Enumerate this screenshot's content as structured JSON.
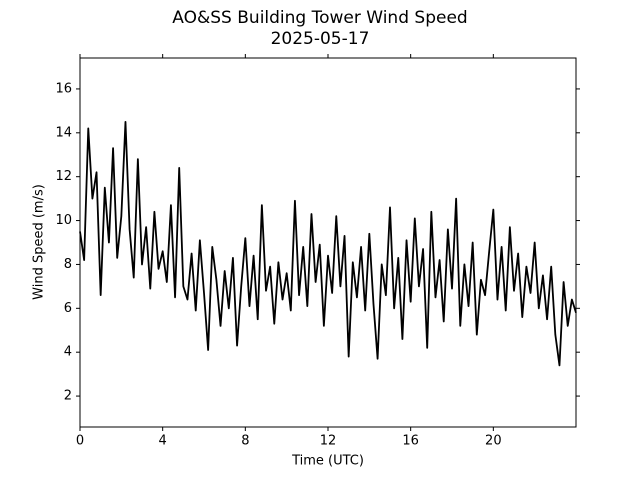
{
  "chart_data": {
    "type": "line",
    "title": "AO&SS Building Tower Wind Speed",
    "subtitle": "2025-05-17",
    "x_label": "Time (UTC)",
    "y_label": "Wind Speed (m/s)",
    "xlim": [
      0,
      24
    ],
    "ylim": [
      0.59,
      17.41
    ],
    "xticks": [
      0,
      4,
      8,
      12,
      16,
      20
    ],
    "yticks": [
      2,
      4,
      6,
      8,
      10,
      12,
      14,
      16
    ],
    "color": "#000000",
    "x": [
      0.0,
      0.2,
      0.4,
      0.6,
      0.8,
      1.0,
      1.2,
      1.4,
      1.6,
      1.8,
      2.0,
      2.2,
      2.4,
      2.6,
      2.8,
      3.0,
      3.2,
      3.4,
      3.6,
      3.8,
      4.0,
      4.2,
      4.4,
      4.6,
      4.8,
      5.0,
      5.2,
      5.4,
      5.6,
      5.8,
      6.0,
      6.2,
      6.4,
      6.6,
      6.8,
      7.0,
      7.2,
      7.4,
      7.6,
      7.8,
      8.0,
      8.2,
      8.4,
      8.6,
      8.8,
      9.0,
      9.2,
      9.4,
      9.6,
      9.8,
      10.0,
      10.2,
      10.4,
      10.6,
      10.8,
      11.0,
      11.2,
      11.4,
      11.6,
      11.8,
      12.0,
      12.2,
      12.4,
      12.6,
      12.8,
      13.0,
      13.2,
      13.4,
      13.6,
      13.8,
      14.0,
      14.2,
      14.4,
      14.6,
      14.8,
      15.0,
      15.2,
      15.4,
      15.6,
      15.8,
      16.0,
      16.2,
      16.4,
      16.6,
      16.8,
      17.0,
      17.2,
      17.4,
      17.6,
      17.8,
      18.0,
      18.2,
      18.4,
      18.6,
      18.8,
      19.0,
      19.2,
      19.4,
      19.6,
      19.8,
      20.0,
      20.2,
      20.4,
      20.6,
      20.8,
      21.0,
      21.2,
      21.4,
      21.6,
      21.8,
      22.0,
      22.2,
      22.4,
      22.6,
      22.8,
      23.0,
      23.2,
      23.4,
      23.6,
      23.8,
      24.0
    ],
    "values": [
      9.5,
      8.2,
      14.2,
      11.0,
      12.2,
      6.6,
      11.5,
      9.0,
      13.3,
      8.3,
      10.2,
      14.5,
      9.6,
      7.4,
      12.8,
      8.0,
      9.7,
      6.9,
      10.4,
      7.8,
      8.6,
      7.2,
      10.7,
      6.5,
      12.4,
      7.0,
      6.4,
      8.5,
      5.9,
      9.1,
      6.7,
      4.1,
      8.8,
      7.3,
      5.2,
      7.7,
      6.0,
      8.3,
      4.3,
      7.0,
      9.2,
      6.1,
      8.4,
      5.5,
      10.7,
      6.8,
      7.9,
      5.3,
      8.1,
      6.4,
      7.6,
      5.9,
      10.9,
      6.6,
      8.8,
      6.1,
      10.3,
      7.2,
      8.9,
      5.2,
      8.4,
      6.7,
      10.2,
      7.0,
      9.3,
      3.8,
      8.1,
      6.5,
      8.8,
      5.9,
      9.4,
      6.2,
      3.7,
      8.0,
      6.6,
      10.6,
      6.0,
      8.3,
      4.6,
      9.1,
      6.3,
      10.1,
      7.0,
      8.7,
      4.2,
      10.4,
      6.5,
      8.2,
      5.4,
      9.6,
      6.9,
      11.0,
      5.2,
      8.0,
      6.1,
      9.0,
      4.8,
      7.3,
      6.6,
      8.6,
      10.5,
      6.4,
      8.8,
      5.9,
      9.7,
      6.8,
      8.5,
      5.6,
      7.9,
      6.7,
      9.0,
      6.0,
      7.5,
      5.5,
      7.9,
      4.8,
      3.4,
      7.2,
      5.2,
      6.4,
      5.8
    ]
  }
}
